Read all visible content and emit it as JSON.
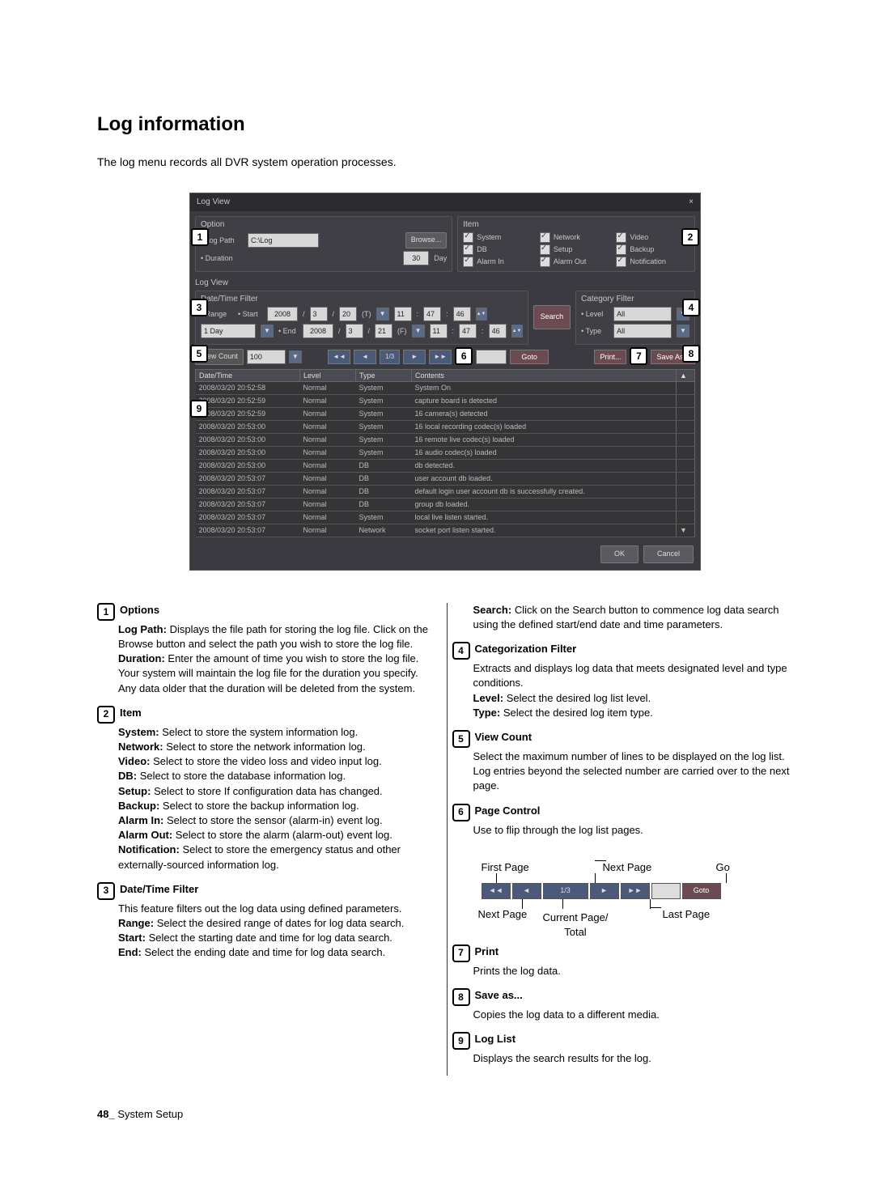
{
  "section_title": "Log information",
  "intro_text": "The log menu records all DVR system operation processes.",
  "window": {
    "title": "Log View",
    "close": "×",
    "option": {
      "title": "Option",
      "log_path_label": "Log Path",
      "log_path_value": "C:\\Log",
      "browse_btn": "Browse...",
      "duration_label": "Duration",
      "duration_value": "30",
      "duration_unit": "Day"
    },
    "item": {
      "title": "Item",
      "system": "System",
      "network": "Network",
      "video": "Video",
      "db": "DB",
      "setup": "Setup",
      "backup": "Backup",
      "alarm_in": "Alarm In",
      "alarm_out": "Alarm Out",
      "notification": "Notification"
    },
    "logview_label": "Log View",
    "datefilter": {
      "title": "Date/Time Filter",
      "range_label": "Range",
      "start_label": "Start",
      "end_label": "End",
      "range_value": "1 Day",
      "start_y": "2008",
      "start_m": "3",
      "start_d": "20",
      "start_dw": "(T)",
      "start_h": "11",
      "start_min": "47",
      "start_s": "46",
      "end_y": "2008",
      "end_m": "3",
      "end_d": "21",
      "end_dw": "(F)",
      "end_h": "11",
      "end_min": "47",
      "end_s": "46",
      "search_btn": "Search"
    },
    "catfilter": {
      "title": "Category Filter",
      "level_label": "Level",
      "type_label": "Type",
      "level_value": "All",
      "type_value": "All"
    },
    "viewcount": {
      "label": "View Count",
      "value": "100",
      "page": "1/3",
      "goto_btn": "Goto",
      "print_btn": "Print...",
      "saveas_btn": "Save As..."
    },
    "table": {
      "cols": [
        "Date/Time",
        "Level",
        "Type",
        "Contents"
      ],
      "rows": [
        [
          "2008/03/20 20:52:58",
          "Normal",
          "System",
          "System On"
        ],
        [
          "2008/03/20 20:52:59",
          "Normal",
          "System",
          "capture board is detected"
        ],
        [
          "2008/03/20 20:52:59",
          "Normal",
          "System",
          "16 camera(s) detected"
        ],
        [
          "2008/03/20 20:53:00",
          "Normal",
          "System",
          "16 local recording codec(s) loaded"
        ],
        [
          "2008/03/20 20:53:00",
          "Normal",
          "System",
          "16 remote live codec(s) loaded"
        ],
        [
          "2008/03/20 20:53:00",
          "Normal",
          "System",
          "16 audio codec(s) loaded"
        ],
        [
          "2008/03/20 20:53:00",
          "Normal",
          "DB",
          "db detected."
        ],
        [
          "2008/03/20 20:53:07",
          "Normal",
          "DB",
          "user account db loaded."
        ],
        [
          "2008/03/20 20:53:07",
          "Normal",
          "DB",
          "default login user account db is successfully created."
        ],
        [
          "2008/03/20 20:53:07",
          "Normal",
          "DB",
          "group db loaded."
        ],
        [
          "2008/03/20 20:53:07",
          "Normal",
          "System",
          "local live listen started."
        ],
        [
          "2008/03/20 20:53:07",
          "Normal",
          "Network",
          "socket port listen started."
        ]
      ]
    },
    "ok_btn": "OK",
    "cancel_btn": "Cancel"
  },
  "desc": {
    "n1": {
      "title": "Options",
      "logpath_k": "Log Path:",
      "logpath_v": "Displays the file path for storing the log file. Click on the Browse button and select the path you wish to store the log file.",
      "duration_k": "Duration:",
      "duration_v": "Enter the amount of time you wish to store the log file. Your system will maintain the log file for the duration you specify. Any data older that the duration will be deleted from the system."
    },
    "n2": {
      "title": "Item",
      "system_k": "System:",
      "system_v": "Select to store the system information log.",
      "network_k": "Network:",
      "network_v": "Select to store the network information log.",
      "video_k": "Video:",
      "video_v": "Select to store the video loss and video input log.",
      "db_k": "DB:",
      "db_v": "Select to store the database information log.",
      "setup_k": "Setup:",
      "setup_v": "Select to store If configuration data has changed.",
      "backup_k": "Backup:",
      "backup_v": "Select to store the backup information log.",
      "alarmin_k": "Alarm In:",
      "alarmin_v": "Select to store the sensor (alarm-in) event log.",
      "alarmout_k": "Alarm Out:",
      "alarmout_v": "Select to store the alarm (alarm-out) event log.",
      "notif_k": "Notification:",
      "notif_v": "Select to store the emergency status and other externally-sourced information log."
    },
    "n3": {
      "title": "Date/Time Filter",
      "body": "This feature filters out the log data using defined parameters.",
      "range_k": "Range:",
      "range_v": "Select the desired range of dates for log data search.",
      "start_k": "Start:",
      "start_v": "Select the starting date and time for log data search.",
      "end_k": "End:",
      "end_v": "Select the ending date and time for log data search.",
      "search_k": "Search:",
      "search_v": "Click on the Search button to commence log data search using the defined start/end date and time parameters."
    },
    "n4": {
      "title": "Categorization Filter",
      "body": "Extracts and displays log data that meets designated level and type conditions.",
      "level_k": "Level:",
      "level_v": "Select the desired log list level.",
      "type_k": "Type:",
      "type_v": "Select the desired log item type."
    },
    "n5": {
      "title": "View Count",
      "body": "Select the maximum number of lines to be displayed on the log list. Log entries beyond the selected number are carried over to the next page."
    },
    "n6": {
      "title": "Page Control",
      "body": "Use to flip through the log list pages.",
      "first_page": "First Page",
      "next_page": "Next Page",
      "go": "Go",
      "next_page2": "Next Page",
      "current_page": "Current Page/\nTotal",
      "last_page": "Last Page",
      "bar_page": "1/3",
      "bar_goto": "Goto"
    },
    "n7": {
      "title": "Print",
      "body": "Prints the log data."
    },
    "n8": {
      "title": "Save as...",
      "body": "Copies the log data to a different media."
    },
    "n9": {
      "title": "Log List",
      "body": "Displays the search results for the log."
    }
  },
  "footer": {
    "page": "48_",
    "label": "System Setup"
  },
  "nav_icons": {
    "first": "◄◄",
    "prev": "◄",
    "next": "►",
    "last": "►►",
    "play": "►▌"
  }
}
